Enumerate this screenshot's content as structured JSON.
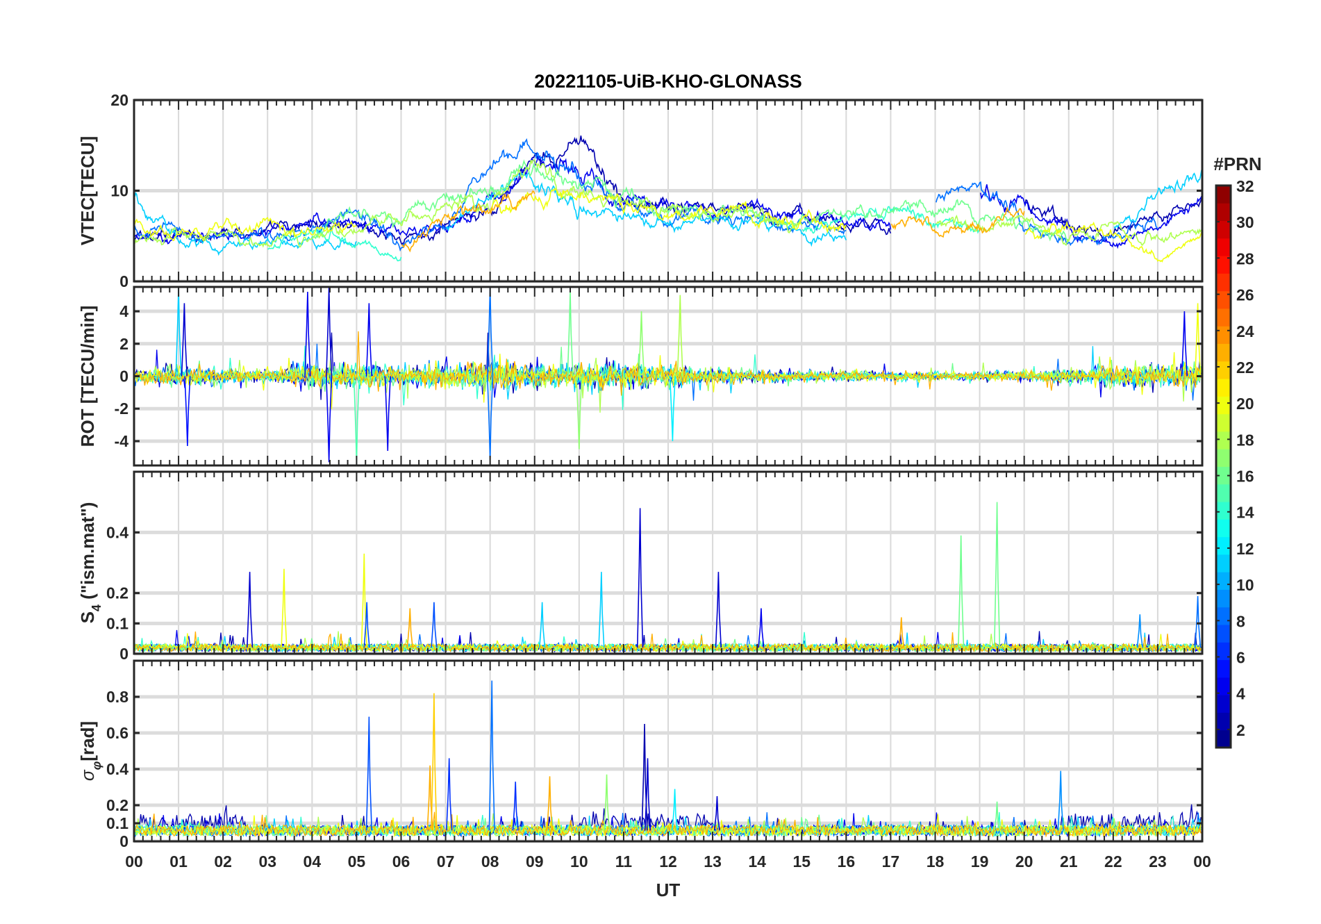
{
  "title": "20221105-UiB-KHO-GLONASS",
  "xaxis": {
    "label": "UT",
    "xlim": [
      0,
      24
    ],
    "tick_values": [
      0,
      1,
      2,
      3,
      4,
      5,
      6,
      7,
      8,
      9,
      10,
      11,
      12,
      13,
      14,
      15,
      16,
      17,
      18,
      19,
      20,
      21,
      22,
      23,
      24
    ],
    "tick_labels": [
      "00",
      "01",
      "02",
      "03",
      "04",
      "05",
      "06",
      "07",
      "08",
      "09",
      "10",
      "11",
      "12",
      "13",
      "14",
      "15",
      "16",
      "17",
      "18",
      "19",
      "20",
      "21",
      "22",
      "23",
      "00"
    ]
  },
  "colorbar": {
    "label": "#PRN",
    "range": [
      1,
      32
    ],
    "levels": 32,
    "colormap": "jet",
    "tick_values": [
      2,
      4,
      6,
      8,
      10,
      12,
      14,
      16,
      18,
      20,
      22,
      24,
      26,
      28,
      30,
      32
    ],
    "tick_labels": [
      "2",
      "4",
      "6",
      "8",
      "10",
      "12",
      "14",
      "16",
      "18",
      "20",
      "22",
      "24",
      "26",
      "28",
      "30",
      "32"
    ]
  },
  "chart_data": [
    {
      "panel": "vtec",
      "type": "line",
      "ylabel": "VTEC[TECU]",
      "ylim": [
        0,
        20
      ],
      "tick_values": [
        0,
        10,
        20
      ],
      "tick_labels": [
        "0",
        "10",
        "20"
      ],
      "grid": true,
      "series": [
        {
          "prn": 2,
          "x_hours_step": 1,
          "values": [
            4.5,
            5,
            5,
            5.5,
            6,
            6,
            4.5,
            6,
            8,
            14,
            15,
            9,
            8,
            8,
            8,
            7,
            6,
            5.5,
            null,
            null,
            9,
            6,
            5,
            7,
            9
          ]
        },
        {
          "prn": 4,
          "x_hours_step": 1,
          "values": [
            5,
            4.5,
            5,
            5.5,
            7,
            6,
            5,
            6,
            9,
            13,
            12,
            9,
            8,
            8,
            8,
            7,
            6.5,
            6,
            null,
            10,
            8,
            5,
            4,
            6,
            10
          ]
        },
        {
          "prn": 8,
          "x_hours_step": 1,
          "values": [
            6,
            5,
            5,
            5,
            6,
            8,
            4,
            6,
            13,
            15,
            11,
            8,
            7,
            7,
            7,
            6.5,
            6,
            null,
            9,
            11,
            7,
            4.5,
            5,
            6,
            null
          ]
        },
        {
          "prn": 11,
          "x_hours_step": 1,
          "values": [
            9,
            4.5,
            4,
            4,
            4.5,
            4.5,
            null,
            6,
            10,
            12,
            8,
            7,
            7,
            7,
            6.5,
            5.5,
            4.5,
            null,
            null,
            null,
            null,
            null,
            6,
            9,
            12
          ]
        },
        {
          "prn": 14,
          "x_hours_step": 1,
          "values": [
            null,
            null,
            null,
            3.5,
            6,
            4,
            3,
            null,
            null,
            null,
            null,
            null,
            null,
            null,
            null,
            6,
            7,
            8,
            7,
            6,
            null,
            null,
            null,
            null,
            null
          ]
        },
        {
          "prn": 16,
          "x_hours_step": 1,
          "values": [
            null,
            null,
            null,
            null,
            5,
            8,
            7,
            9,
            10,
            12,
            11,
            9,
            8,
            8,
            7.5,
            7,
            7,
            8,
            8,
            7,
            6,
            5,
            null,
            null,
            null
          ]
        },
        {
          "prn": 18,
          "x_hours_step": 1,
          "values": [
            4,
            5,
            4.5,
            5,
            5,
            6,
            7,
            8,
            9,
            13,
            10,
            9,
            8,
            7.5,
            7,
            6.5,
            null,
            null,
            7,
            6,
            7,
            5,
            6,
            5,
            6
          ]
        },
        {
          "prn": 20,
          "x_hours_step": 1,
          "values": [
            6,
            5,
            6,
            6,
            5,
            6,
            null,
            null,
            8,
            9,
            10,
            8,
            8,
            8,
            7,
            7,
            6,
            null,
            null,
            null,
            5,
            6,
            5,
            2,
            5
          ]
        },
        {
          "prn": 23,
          "x_hours_step": 1,
          "values": [
            null,
            null,
            null,
            null,
            null,
            null,
            4,
            7,
            8,
            10,
            null,
            null,
            null,
            null,
            null,
            null,
            null,
            7,
            6,
            6,
            8,
            null,
            null,
            null,
            null
          ]
        }
      ]
    },
    {
      "panel": "rot",
      "type": "line",
      "ylabel": "ROT [TECU/min]",
      "ylim": [
        -5.5,
        5.5
      ],
      "tick_values": [
        -4,
        -2,
        0,
        2,
        4
      ],
      "tick_labels": [
        "-4",
        "-2",
        "0",
        "2",
        "4"
      ],
      "grid": true,
      "prns": [
        2,
        4,
        8,
        11,
        14,
        16,
        18,
        20,
        23
      ],
      "activity_hourly": [
        0.5,
        0.8,
        0.6,
        0.6,
        1.0,
        1.0,
        0.8,
        1.0,
        1.2,
        1.1,
        1.0,
        1.0,
        0.8,
        0.6,
        0.5,
        0.4,
        0.4,
        0.35,
        0.35,
        0.35,
        0.4,
        0.6,
        0.8,
        1.0,
        1.0
      ],
      "spikes": [
        {
          "t": 1.0,
          "value": 5.5,
          "prn": 11
        },
        {
          "t": 1.13,
          "value": 4.5,
          "prn": 3
        },
        {
          "t": 1.2,
          "value": -4.3,
          "prn": 5
        },
        {
          "t": 3.9,
          "value": 5.2,
          "prn": 4
        },
        {
          "t": 4.38,
          "value": 5.5,
          "prn": 3
        },
        {
          "t": 4.38,
          "value": -5.3,
          "prn": 4
        },
        {
          "t": 5.28,
          "value": 4.5,
          "prn": 4
        },
        {
          "t": 5.0,
          "value": -5.4,
          "prn": 15
        },
        {
          "t": 5.7,
          "value": -4.6,
          "prn": 4
        },
        {
          "t": 8.0,
          "value": 5.5,
          "prn": 8
        },
        {
          "t": 8.0,
          "value": -5.2,
          "prn": 8
        },
        {
          "t": 9.8,
          "value": 5.2,
          "prn": 16
        },
        {
          "t": 10.0,
          "value": -4.5,
          "prn": 17
        },
        {
          "t": 11.4,
          "value": 4.0,
          "prn": 17
        },
        {
          "t": 12.27,
          "value": 5.0,
          "prn": 18
        },
        {
          "t": 12.1,
          "value": -4.0,
          "prn": 12
        },
        {
          "t": 23.6,
          "value": 4.0,
          "prn": 4
        },
        {
          "t": 23.9,
          "value": 4.5,
          "prn": 20
        }
      ]
    },
    {
      "panel": "s4",
      "type": "line",
      "ylabel_main": "S",
      "ylabel_sub": "4",
      "ylabel_rest": " (\"ism.mat\")",
      "ylim": [
        0,
        0.6
      ],
      "tick_values": [
        0,
        0.1,
        0.2,
        0.4
      ],
      "tick_labels": [
        "0",
        "0.1",
        "0.2",
        "0.4"
      ],
      "grid": true,
      "prns": [
        2,
        4,
        8,
        11,
        14,
        16,
        18,
        20,
        23
      ],
      "baseline": 0.02,
      "spikes": [
        {
          "t": 2.6,
          "value": 0.27,
          "prn": 3
        },
        {
          "t": 3.37,
          "value": 0.28,
          "prn": 20
        },
        {
          "t": 5.17,
          "value": 0.33,
          "prn": 20
        },
        {
          "t": 5.23,
          "value": 0.17,
          "prn": 7
        },
        {
          "t": 6.2,
          "value": 0.15,
          "prn": 23
        },
        {
          "t": 6.74,
          "value": 0.17,
          "prn": 7
        },
        {
          "t": 9.17,
          "value": 0.17,
          "prn": 11
        },
        {
          "t": 10.5,
          "value": 0.27,
          "prn": 11
        },
        {
          "t": 11.37,
          "value": 0.48,
          "prn": 3
        },
        {
          "t": 13.13,
          "value": 0.27,
          "prn": 3
        },
        {
          "t": 14.09,
          "value": 0.15,
          "prn": 4
        },
        {
          "t": 17.24,
          "value": 0.12,
          "prn": 23
        },
        {
          "t": 18.58,
          "value": 0.39,
          "prn": 16
        },
        {
          "t": 19.39,
          "value": 0.5,
          "prn": 16
        },
        {
          "t": 22.6,
          "value": 0.13,
          "prn": 9
        },
        {
          "t": 23.9,
          "value": 0.19,
          "prn": 8
        }
      ]
    },
    {
      "panel": "sigma_phi",
      "type": "line",
      "ylabel_main": "σ",
      "ylabel_sub": "φ",
      "ylabel_rest": "[rad]",
      "ylim": [
        0,
        1.0
      ],
      "tick_values": [
        0,
        0.1,
        0.2,
        0.4,
        0.6,
        0.8
      ],
      "tick_labels": [
        "0",
        "0.1",
        "0.2",
        "0.4",
        "0.6",
        "0.8"
      ],
      "grid": true,
      "prns": [
        2,
        4,
        8,
        11,
        14,
        16,
        18,
        20,
        23
      ],
      "baseline": 0.06,
      "spikes": [
        {
          "t": 5.28,
          "value": 0.69,
          "prn": 7
        },
        {
          "t": 6.74,
          "value": 0.82,
          "prn": 22
        },
        {
          "t": 6.65,
          "value": 0.42,
          "prn": 23
        },
        {
          "t": 7.08,
          "value": 0.46,
          "prn": 6
        },
        {
          "t": 8.04,
          "value": 0.89,
          "prn": 8
        },
        {
          "t": 8.57,
          "value": 0.33,
          "prn": 6
        },
        {
          "t": 9.34,
          "value": 0.36,
          "prn": 23
        },
        {
          "t": 10.62,
          "value": 0.37,
          "prn": 17
        },
        {
          "t": 11.47,
          "value": 0.65,
          "prn": 2
        },
        {
          "t": 11.54,
          "value": 0.46,
          "prn": 3
        },
        {
          "t": 12.15,
          "value": 0.29,
          "prn": 12
        },
        {
          "t": 13.1,
          "value": 0.25,
          "prn": 3
        },
        {
          "t": 19.39,
          "value": 0.22,
          "prn": 16
        },
        {
          "t": 20.82,
          "value": 0.39,
          "prn": 9
        }
      ]
    }
  ]
}
